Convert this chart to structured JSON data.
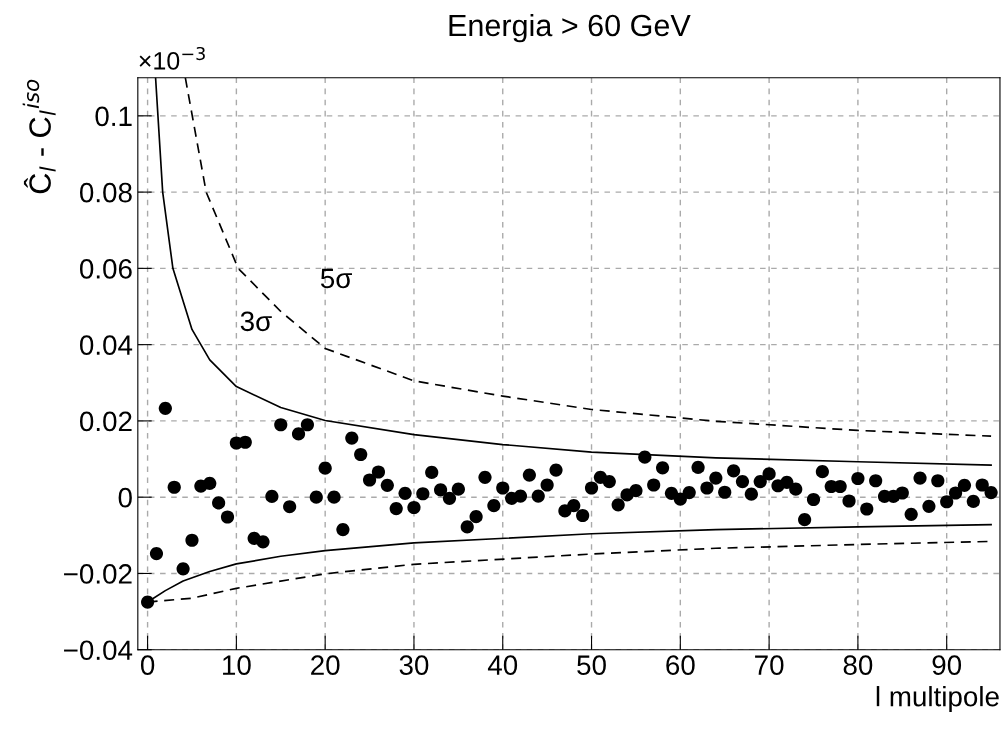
{
  "chart_data": {
    "type": "scatter",
    "title": "Energia > 60 GeV",
    "xlabel": "l multipole",
    "ylabel": "Ĉ$_{l}$ - C$_{l}$$^{iso}$",
    "annotations": [
      "×10$^{−3}$",
      "3σ",
      "5σ"
    ],
    "xlim": [
      -1.1,
      96
    ],
    "xticks": [
      0,
      10,
      20,
      30,
      40,
      50,
      60,
      70,
      80,
      90
    ],
    "ylim": [
      -0.04,
      0.11
    ],
    "yticks": [
      {
        "value": -0.04,
        "label": "−0.04"
      },
      {
        "value": -0.02,
        "label": "−0.02"
      },
      0,
      0.02,
      0.04,
      0.06,
      0.08,
      0.1
    ],
    "grid": true,
    "series": [
      {
        "marker": "circle",
        "color": "#000000",
        "x": [
          0,
          1,
          2,
          3,
          4,
          5,
          6,
          7,
          8,
          9,
          10,
          11,
          12,
          13,
          14,
          15,
          16,
          17,
          18,
          19,
          20,
          21,
          22,
          23,
          24,
          25,
          26,
          27,
          28,
          29,
          30,
          31,
          32,
          33,
          34,
          35,
          36,
          37,
          38,
          39,
          40,
          41,
          42,
          43,
          44,
          45,
          46,
          47,
          48,
          49,
          50,
          51,
          52,
          53,
          54,
          55,
          56,
          57,
          58,
          59,
          60,
          61,
          62,
          63,
          64,
          65,
          66,
          67,
          68,
          69,
          70,
          71,
          72,
          73,
          74,
          75,
          76,
          77,
          78,
          79,
          80,
          81,
          82,
          83,
          84,
          85,
          86,
          87,
          88,
          89,
          90,
          91,
          92,
          93,
          94,
          95
        ],
        "values": [
          -0.0275,
          -0.0148,
          0.0233,
          0.0026,
          -0.0188,
          -0.0113,
          0.0029,
          0.0036,
          -0.0015,
          -0.0052,
          0.0142,
          0.0144,
          -0.0108,
          -0.0117,
          0.0002,
          0.019,
          -0.0025,
          0.0166,
          0.019,
          0.0,
          0.0076,
          0.0,
          -0.0085,
          0.0155,
          0.0112,
          0.0045,
          0.0066,
          0.0031,
          -0.003,
          0.001,
          -0.0027,
          0.0009,
          0.0065,
          0.0019,
          -0.0003,
          0.0021,
          -0.0078,
          -0.0051,
          0.0052,
          -0.0022,
          0.0024,
          -0.0003,
          0.0003,
          0.0058,
          0.0003,
          0.0032,
          0.0071,
          -0.0036,
          -0.0022,
          -0.0048,
          0.0024,
          0.0052,
          0.0041,
          -0.002,
          0.0006,
          0.0017,
          0.0105,
          0.0032,
          0.0077,
          0.001,
          -0.0005,
          0.0012,
          0.0078,
          0.0024,
          0.005,
          0.0013,
          0.0069,
          0.0041,
          0.0008,
          0.0041,
          0.0061,
          0.003,
          0.0039,
          0.0021,
          -0.0059,
          -0.0006,
          0.0067,
          0.0028,
          0.0028,
          -0.001,
          0.0049,
          -0.0031,
          0.0043,
          0.0002,
          0.0002,
          0.0011,
          -0.0045,
          0.005,
          -0.0024,
          0.0043,
          -0.0012,
          0.0011,
          0.0031,
          -0.0011,
          0.0032,
          0.0012
        ]
      },
      {
        "type": "line",
        "color": "#000000",
        "line_style": "solid",
        "x": [
          0.9,
          1.7,
          2.85,
          5,
          7,
          10,
          15,
          20,
          30,
          40,
          50,
          64,
          80,
          95
        ],
        "values": [
          0.11,
          0.08,
          0.06,
          0.044,
          0.036,
          0.029,
          0.0235,
          0.0201,
          0.0164,
          0.0138,
          0.0118,
          0.0103,
          0.0093,
          0.0084
        ]
      },
      {
        "type": "line",
        "color": "#000000",
        "line_style": "dashed",
        "x": [
          4.25,
          6.6,
          10.2,
          15,
          20,
          30,
          40,
          50,
          64,
          80,
          95
        ],
        "values": [
          0.11,
          0.08,
          0.06,
          0.0487,
          0.039,
          0.0305,
          0.0265,
          0.023,
          0.0199,
          0.0175,
          0.016
        ]
      },
      {
        "type": "line",
        "color": "#000000",
        "line_style": "solid",
        "x": [
          0,
          2,
          4,
          7,
          10,
          15,
          20,
          30,
          50,
          64,
          80,
          95
        ],
        "values": [
          -0.0275,
          -0.0245,
          -0.022,
          -0.0195,
          -0.0175,
          -0.0155,
          -0.014,
          -0.012,
          -0.0096,
          -0.0085,
          -0.0078,
          -0.0072
        ]
      },
      {
        "type": "line",
        "color": "#000000",
        "line_style": "dashed",
        "x": [
          0,
          5,
          10,
          20,
          30,
          50,
          64,
          80,
          95
        ],
        "values": [
          -0.0275,
          -0.0265,
          -0.0239,
          -0.0201,
          -0.0176,
          -0.0149,
          -0.0134,
          -0.0124,
          -0.0116
        ]
      }
    ]
  }
}
